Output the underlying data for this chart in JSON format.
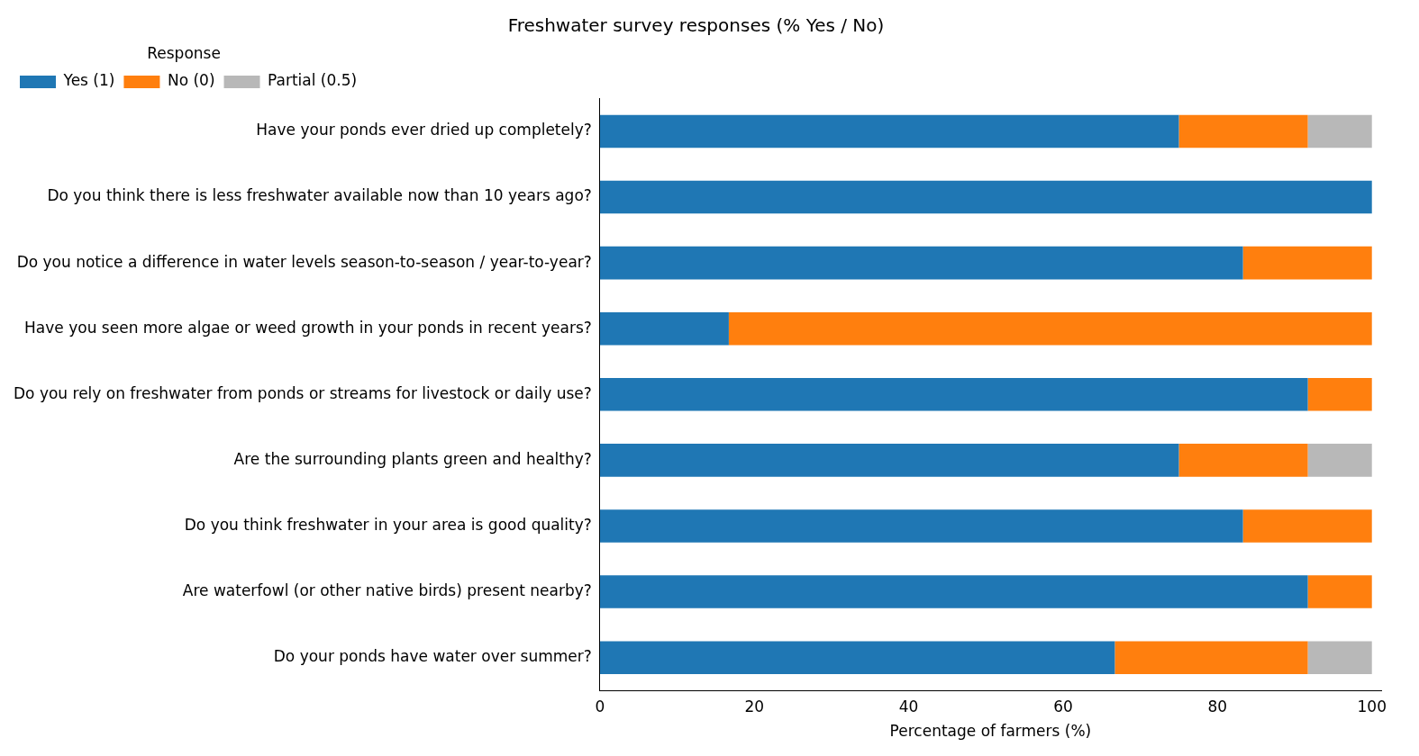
{
  "chart_data": {
    "type": "bar",
    "orientation": "horizontal",
    "stacked": true,
    "title": "Freshwater survey responses (% Yes / No)",
    "xlabel": "Percentage of farmers (%)",
    "legend_title": "Response",
    "legend": "top left",
    "categories": [
      "Have your ponds ever dried up completely?",
      "Do you think there is less freshwater available now than 10 years ago?",
      "Do you notice a difference in water levels season-to-season / year-to-year?",
      "Have you seen more algae or weed growth in your ponds in recent years?",
      "Do you rely on freshwater from ponds or streams for livestock or daily use?",
      "Are the surrounding plants green and healthy?",
      "Do you think freshwater in your area is good quality?",
      "Are waterfowl (or other native birds) present nearby?",
      "Do your ponds have water over summer?"
    ],
    "series": [
      {
        "name": "Yes (1)",
        "color": "#1f77b4",
        "values": [
          75,
          100,
          83.3,
          16.7,
          91.7,
          75,
          83.3,
          91.7,
          66.7
        ]
      },
      {
        "name": "No (0)",
        "color": "#ff7f0e",
        "values": [
          16.7,
          0,
          16.7,
          83.3,
          8.3,
          16.7,
          16.7,
          8.3,
          25
        ]
      },
      {
        "name": "Partial (0.5)",
        "color": "#b8b8b8",
        "values": [
          8.3,
          0,
          0,
          0,
          0,
          8.3,
          0,
          0,
          8.3
        ]
      }
    ],
    "xlim": [
      0,
      101.2
    ],
    "xticks": [
      0,
      20,
      40,
      60,
      80,
      100
    ]
  }
}
